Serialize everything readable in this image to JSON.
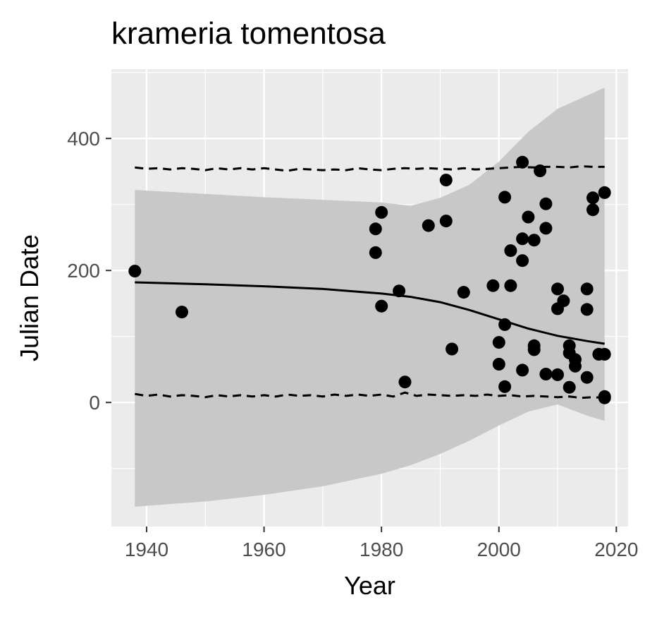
{
  "chart_data": {
    "type": "scatter",
    "title": "krameria tomentosa",
    "xlabel": "Year",
    "ylabel": "Julian Date",
    "xlim": [
      1934,
      2022
    ],
    "ylim": [
      -188,
      505
    ],
    "x_ticks": [
      1940,
      1960,
      1980,
      2000,
      2020
    ],
    "x_tick_labels": [
      "1940",
      "1960",
      "1980",
      "2000",
      "2020"
    ],
    "y_ticks": [
      0,
      200,
      400
    ],
    "y_tick_labels": [
      "0",
      "200",
      "400"
    ],
    "grid": true,
    "legend": "none",
    "colors": {
      "panel_background": "#ebebeb",
      "grid": "#ffffff",
      "ribbon": "#c8c8c8",
      "points": "#000000",
      "lines": "#000000"
    },
    "points": [
      {
        "x": 1938,
        "y": 199
      },
      {
        "x": 1946,
        "y": 137
      },
      {
        "x": 1979,
        "y": 263
      },
      {
        "x": 1979,
        "y": 227
      },
      {
        "x": 1980,
        "y": 288
      },
      {
        "x": 1980,
        "y": 146
      },
      {
        "x": 1983,
        "y": 169
      },
      {
        "x": 1984,
        "y": 31
      },
      {
        "x": 1988,
        "y": 268
      },
      {
        "x": 1991,
        "y": 337
      },
      {
        "x": 1991,
        "y": 275
      },
      {
        "x": 1992,
        "y": 81
      },
      {
        "x": 1994,
        "y": 167
      },
      {
        "x": 1999,
        "y": 177
      },
      {
        "x": 2000,
        "y": 91
      },
      {
        "x": 2000,
        "y": 58
      },
      {
        "x": 2001,
        "y": 311
      },
      {
        "x": 2001,
        "y": 118
      },
      {
        "x": 2001,
        "y": 24
      },
      {
        "x": 2002,
        "y": 230
      },
      {
        "x": 2002,
        "y": 177
      },
      {
        "x": 2004,
        "y": 364
      },
      {
        "x": 2004,
        "y": 248
      },
      {
        "x": 2004,
        "y": 215
      },
      {
        "x": 2004,
        "y": 49
      },
      {
        "x": 2005,
        "y": 281
      },
      {
        "x": 2006,
        "y": 246
      },
      {
        "x": 2006,
        "y": 86
      },
      {
        "x": 2006,
        "y": 80
      },
      {
        "x": 2007,
        "y": 351
      },
      {
        "x": 2008,
        "y": 301
      },
      {
        "x": 2008,
        "y": 264
      },
      {
        "x": 2008,
        "y": 43
      },
      {
        "x": 2010,
        "y": 172
      },
      {
        "x": 2010,
        "y": 142
      },
      {
        "x": 2010,
        "y": 42
      },
      {
        "x": 2011,
        "y": 154
      },
      {
        "x": 2012,
        "y": 86
      },
      {
        "x": 2012,
        "y": 75
      },
      {
        "x": 2012,
        "y": 23
      },
      {
        "x": 2013,
        "y": 65
      },
      {
        "x": 2013,
        "y": 55
      },
      {
        "x": 2015,
        "y": 172
      },
      {
        "x": 2015,
        "y": 141
      },
      {
        "x": 2015,
        "y": 38
      },
      {
        "x": 2016,
        "y": 310
      },
      {
        "x": 2016,
        "y": 292
      },
      {
        "x": 2017,
        "y": 73
      },
      {
        "x": 2018,
        "y": 318
      },
      {
        "x": 2018,
        "y": 73
      },
      {
        "x": 2018,
        "y": 9
      },
      {
        "x": 2018,
        "y": 7
      }
    ],
    "fit_line": {
      "x": [
        1938,
        1950,
        1960,
        1970,
        1980,
        1985,
        1990,
        1995,
        2000,
        2005,
        2010,
        2015,
        2018
      ],
      "y": [
        182,
        179,
        176,
        172,
        165,
        160,
        152,
        140,
        126,
        112,
        101,
        93,
        89
      ]
    },
    "ribbon": {
      "x": [
        1938,
        1950,
        1960,
        1970,
        1980,
        1985,
        1990,
        1995,
        2000,
        2005,
        2010,
        2015,
        2018
      ],
      "lower": [
        -158,
        -150,
        -140,
        -127,
        -108,
        -95,
        -78,
        -58,
        -35,
        -14,
        -3,
        -20,
        -28
      ],
      "upper": [
        322,
        316,
        311,
        307,
        303,
        298,
        310,
        330,
        365,
        410,
        445,
        465,
        477
      ]
    },
    "upper_dashed": {
      "x": [
        1938,
        1940,
        1942,
        1944,
        1946,
        1948,
        1950,
        1952,
        1954,
        1956,
        1958,
        1960,
        1962,
        1964,
        1966,
        1968,
        1970,
        1972,
        1974,
        1976,
        1978,
        1980,
        1982,
        1984,
        1986,
        1988,
        1990,
        1992,
        1994,
        1996,
        1998,
        2000,
        2002,
        2004,
        2006,
        2008,
        2010,
        2012,
        2014,
        2016,
        2018
      ],
      "y": [
        356,
        354,
        355,
        353,
        355,
        354,
        352,
        355,
        353,
        355,
        353,
        355,
        353,
        351,
        354,
        353,
        352,
        353,
        352,
        355,
        353,
        352,
        354,
        355,
        354,
        355,
        354,
        353,
        355,
        353,
        354,
        355,
        356,
        357,
        356,
        357,
        357,
        356,
        358,
        357,
        357
      ]
    },
    "lower_dashed": {
      "x": [
        1938,
        1940,
        1942,
        1944,
        1946,
        1948,
        1950,
        1952,
        1954,
        1956,
        1958,
        1960,
        1962,
        1964,
        1966,
        1968,
        1970,
        1972,
        1974,
        1976,
        1978,
        1980,
        1982,
        1984,
        1986,
        1988,
        1990,
        1992,
        1994,
        1996,
        1998,
        2000,
        2002,
        2004,
        2006,
        2008,
        2010,
        2012,
        2014,
        2016,
        2018
      ],
      "y": [
        13,
        10,
        12,
        9,
        11,
        10,
        8,
        11,
        9,
        11,
        9,
        11,
        9,
        12,
        10,
        11,
        9,
        12,
        10,
        12,
        10,
        12,
        9,
        15,
        10,
        12,
        11,
        10,
        11,
        10,
        12,
        10,
        11,
        9,
        10,
        9,
        8,
        9,
        7,
        8,
        7
      ]
    }
  }
}
